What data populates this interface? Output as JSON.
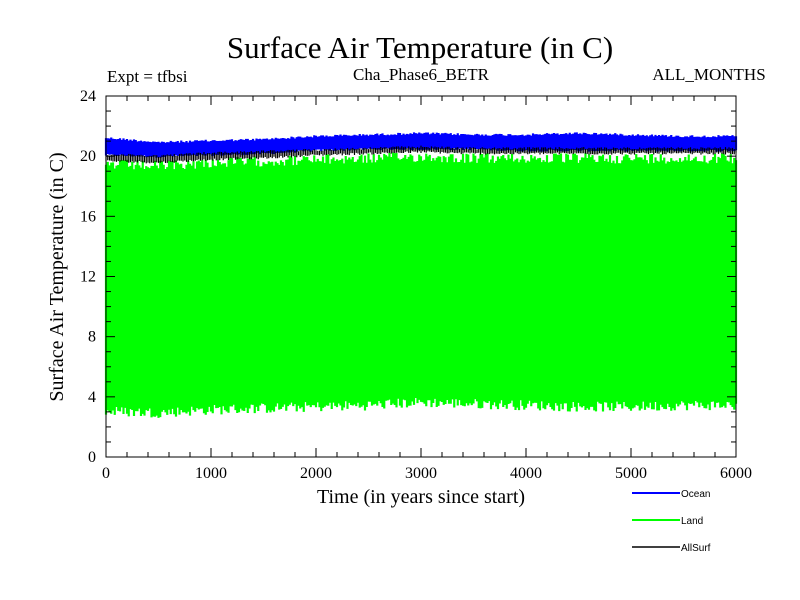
{
  "chart_data": {
    "type": "line",
    "title": "Surface Air Temperature (in C)",
    "subtitle_left": "Expt = tfbsi",
    "subtitle_center": "Cha_Phase6_BETR",
    "subtitle_right": "ALL_MONTHS",
    "xlabel": "Time (in years since start)",
    "ylabel": "Surface Air Temperature (in C)",
    "xlim": [
      0,
      6000
    ],
    "ylim": [
      0,
      24
    ],
    "x_ticks": [
      "0",
      "1000",
      "2000",
      "3000",
      "4000",
      "5000",
      "6000"
    ],
    "y_ticks": [
      "0",
      "4",
      "8",
      "12",
      "16",
      "20",
      "24"
    ],
    "series": [
      {
        "name": "Ocean",
        "color": "#0000ff",
        "x": [
          0,
          500,
          1000,
          1500,
          2000,
          2500,
          3000,
          3500,
          4000,
          4500,
          5000,
          5500,
          6000
        ],
        "min": [
          20.0,
          19.9,
          20.0,
          20.1,
          20.3,
          20.4,
          20.4,
          20.4,
          20.3,
          20.3,
          20.3,
          20.3,
          20.3
        ],
        "max": [
          21.3,
          21.0,
          21.1,
          21.2,
          21.4,
          21.5,
          21.6,
          21.5,
          21.5,
          21.6,
          21.5,
          21.4,
          21.4
        ]
      },
      {
        "name": "Land",
        "color": "#00ff00",
        "x": [
          0,
          500,
          1000,
          1500,
          2000,
          2500,
          3000,
          3500,
          4000,
          4500,
          5000,
          5500,
          6000
        ],
        "min": [
          2.7,
          2.6,
          2.8,
          2.9,
          3.0,
          3.1,
          3.3,
          3.2,
          3.1,
          3.0,
          3.0,
          3.1,
          3.1
        ],
        "max": [
          19.8,
          19.7,
          19.9,
          20.0,
          20.1,
          20.2,
          20.3,
          20.2,
          20.2,
          20.2,
          20.2,
          20.2,
          20.2
        ]
      },
      {
        "name": "AllSurf",
        "color": "#000000",
        "x": [
          0,
          500,
          1000,
          1500,
          2000,
          2500,
          3000,
          3500,
          4000,
          4500,
          5000,
          5500,
          6000
        ],
        "min": [
          19.6,
          19.5,
          19.7,
          19.8,
          20.0,
          20.1,
          20.2,
          20.1,
          20.1,
          20.1,
          20.1,
          20.1,
          20.1
        ],
        "max": [
          20.2,
          20.1,
          20.3,
          20.4,
          20.5,
          20.6,
          20.7,
          20.6,
          20.6,
          20.6,
          20.6,
          20.6,
          20.6
        ]
      }
    ],
    "legend_position": "bottom-right"
  }
}
